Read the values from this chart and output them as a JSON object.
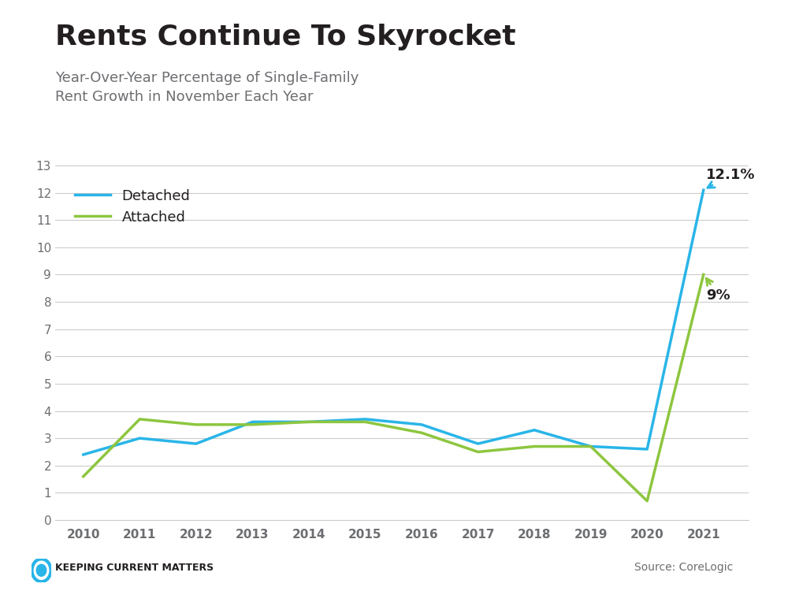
{
  "title": "Rents Continue To Skyrocket",
  "subtitle": "Year-Over-Year Percentage of Single-Family\nRent Growth in November Each Year",
  "years": [
    2010,
    2011,
    2012,
    2013,
    2014,
    2015,
    2016,
    2017,
    2018,
    2019,
    2020,
    2021
  ],
  "detached": [
    2.4,
    3.0,
    2.8,
    3.6,
    3.6,
    3.7,
    3.5,
    2.8,
    3.3,
    2.7,
    2.6,
    12.1
  ],
  "attached": [
    1.6,
    3.7,
    3.5,
    3.5,
    3.6,
    3.6,
    3.2,
    2.5,
    2.7,
    2.7,
    0.7,
    9.0
  ],
  "detached_color": "#29B5E8",
  "attached_color": "#8DC63F",
  "title_color": "#231F20",
  "subtitle_color": "#6D6E71",
  "annotation_color": "#231F20",
  "grid_color": "#CCCCCC",
  "axis_color": "#CCCCCC",
  "tick_color": "#6D6E71",
  "background_color": "#FFFFFF",
  "ylim": [
    0,
    13
  ],
  "yticks": [
    0,
    1,
    2,
    3,
    4,
    5,
    6,
    7,
    8,
    9,
    10,
    11,
    12,
    13
  ],
  "footer_text": "Keeping Current Matters",
  "source_text": "Source: CoreLogic",
  "detached_label": "Detached",
  "attached_label": "Attached",
  "detached_annotation": "12.1%",
  "attached_annotation": "9%",
  "line_width": 2.5,
  "top_bar_color": "#29B5E8",
  "top_bar_height": 8
}
